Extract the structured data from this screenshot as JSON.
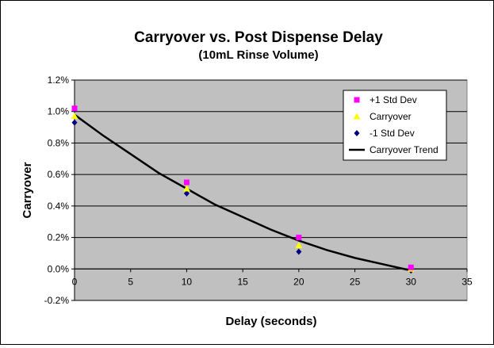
{
  "chart_data": {
    "type": "scatter",
    "title": "Carryover vs. Post Dispense Delay",
    "subtitle": "(10mL Rinse Volume)",
    "xlabel": "Delay (seconds)",
    "ylabel": "Carryover",
    "xlim": [
      0,
      35
    ],
    "ylim": [
      -0.2,
      1.2
    ],
    "x_ticks": [
      0,
      5,
      10,
      15,
      20,
      25,
      30,
      35
    ],
    "x_tick_labels": [
      "0",
      "5",
      "10",
      "15",
      "20",
      "25",
      "30",
      "35"
    ],
    "y_ticks": [
      -0.2,
      0.0,
      0.2,
      0.4,
      0.6,
      0.8,
      1.0,
      1.2
    ],
    "y_tick_labels": [
      "-0.2%",
      "0.0%",
      "0.2%",
      "0.4%",
      "0.6%",
      "0.8%",
      "1.0%",
      "1.2%"
    ],
    "grid": "horizontal",
    "legend_position": "top-right",
    "series": [
      {
        "name": "+1 Std Dev",
        "marker": "square",
        "color": "#ff00ff",
        "x": [
          0,
          10,
          20,
          30
        ],
        "y": [
          1.02,
          0.55,
          0.2,
          0.01
        ]
      },
      {
        "name": "Carryover",
        "marker": "triangle",
        "color": "#ffff00",
        "x": [
          0,
          10,
          20,
          30
        ],
        "y": [
          0.97,
          0.51,
          0.15,
          0.0
        ]
      },
      {
        "name": "-1 Std Dev",
        "marker": "diamond",
        "color": "#000080",
        "x": [
          0,
          10,
          20,
          30
        ],
        "y": [
          0.93,
          0.48,
          0.11,
          -0.01
        ]
      },
      {
        "name": "Carryover Trend",
        "marker": "line",
        "color": "#000000",
        "x": [
          0,
          2.5,
          5,
          7.5,
          10,
          12.5,
          15,
          17.5,
          20,
          22.5,
          25,
          27.5,
          30
        ],
        "y": [
          0.98,
          0.85,
          0.73,
          0.61,
          0.51,
          0.41,
          0.33,
          0.25,
          0.18,
          0.12,
          0.07,
          0.03,
          -0.01
        ]
      }
    ]
  }
}
